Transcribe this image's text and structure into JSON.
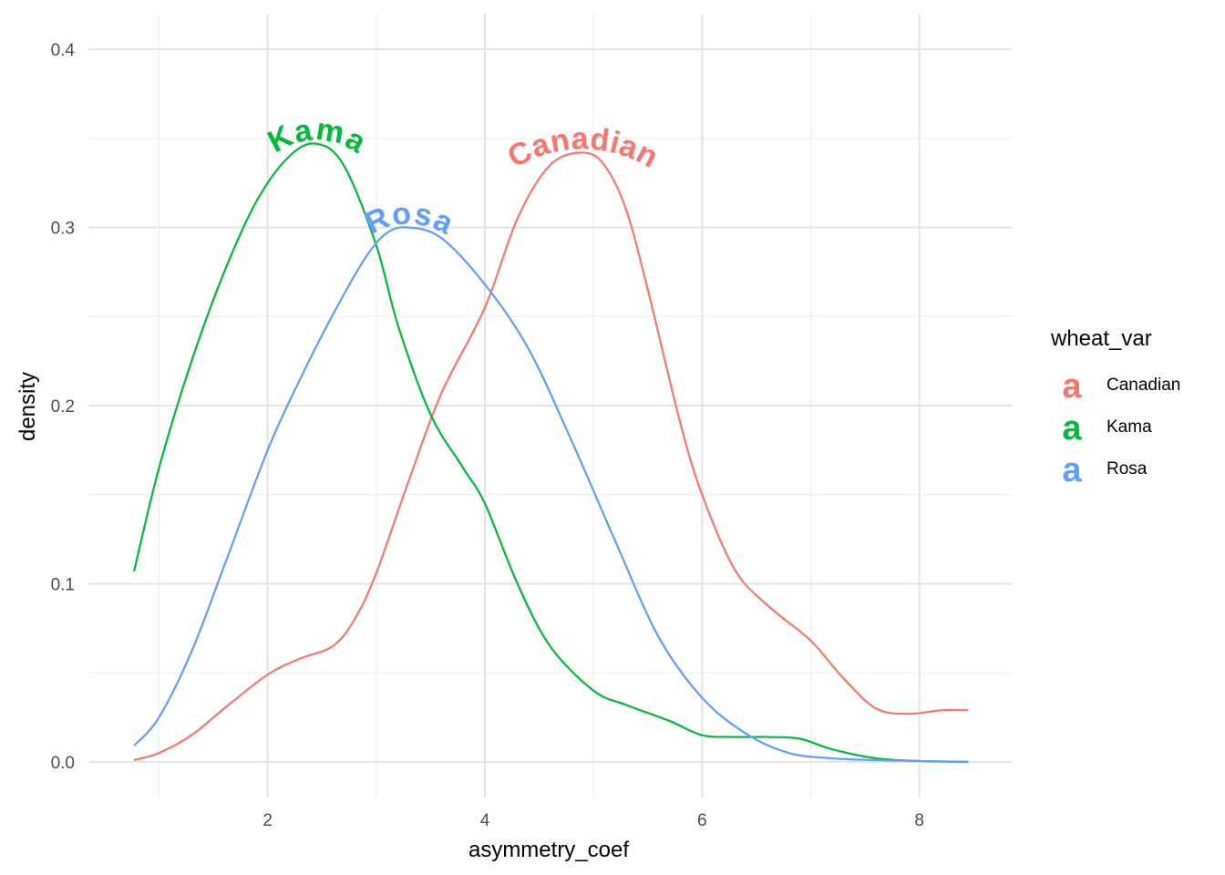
{
  "chart_data": {
    "type": "line",
    "subtype": "density",
    "title": "",
    "xlabel": "asymmetry_coef",
    "ylabel": "density",
    "xlim": [
      0.35,
      8.85
    ],
    "ylim": [
      -0.02,
      0.42
    ],
    "x_ticks": [
      2,
      4,
      6,
      8
    ],
    "x_tick_labels": [
      "2",
      "4",
      "6",
      "8"
    ],
    "y_ticks": [
      0.0,
      0.1,
      0.2,
      0.3,
      0.4
    ],
    "y_tick_labels": [
      "0.0",
      "0.1",
      "0.2",
      "0.3",
      "0.4"
    ],
    "grid": true,
    "legend": {
      "title": "wheat_var",
      "position": "right",
      "key_glyph": "a",
      "entries": [
        "Canadian",
        "Kama",
        "Rosa"
      ]
    },
    "series": [
      {
        "name": "Canadian",
        "color": "#F8766D",
        "curve_label": "Canadian",
        "label_at": [
          4.9,
          0.342
        ],
        "x": [
          0.77,
          1.0,
          1.3,
          1.6,
          2.0,
          2.3,
          2.6,
          2.8,
          3.0,
          3.3,
          3.6,
          4.0,
          4.3,
          4.6,
          4.9,
          5.1,
          5.3,
          5.5,
          5.8,
          6.0,
          6.3,
          6.6,
          7.0,
          7.3,
          7.6,
          7.9,
          8.2,
          8.45
        ],
        "y": [
          0.001,
          0.005,
          0.015,
          0.03,
          0.049,
          0.058,
          0.065,
          0.08,
          0.106,
          0.158,
          0.207,
          0.255,
          0.305,
          0.335,
          0.342,
          0.335,
          0.31,
          0.265,
          0.19,
          0.15,
          0.108,
          0.088,
          0.068,
          0.047,
          0.03,
          0.027,
          0.029,
          0.029
        ]
      },
      {
        "name": "Kama",
        "color": "#00BA38",
        "curve_label": "Kama",
        "label_at": [
          2.45,
          0.347
        ],
        "x": [
          0.77,
          1.0,
          1.3,
          1.6,
          1.9,
          2.2,
          2.45,
          2.7,
          3.0,
          3.2,
          3.5,
          3.8,
          4.0,
          4.3,
          4.6,
          5.0,
          5.3,
          5.7,
          6.0,
          6.3,
          6.6,
          6.9,
          7.2,
          7.6,
          8.0,
          8.45
        ],
        "y": [
          0.107,
          0.165,
          0.225,
          0.275,
          0.315,
          0.34,
          0.347,
          0.335,
          0.29,
          0.245,
          0.195,
          0.165,
          0.145,
          0.1,
          0.065,
          0.04,
          0.032,
          0.023,
          0.015,
          0.014,
          0.014,
          0.013,
          0.007,
          0.002,
          0.0005,
          0.0
        ]
      },
      {
        "name": "Rosa",
        "color": "#619CFF",
        "curve_label": "Rosa",
        "label_at": [
          3.3,
          0.3
        ],
        "x": [
          0.77,
          1.0,
          1.3,
          1.6,
          2.0,
          2.3,
          2.6,
          2.9,
          3.1,
          3.3,
          3.6,
          4.0,
          4.4,
          4.8,
          5.2,
          5.6,
          6.0,
          6.4,
          6.8,
          7.2,
          7.6,
          8.0,
          8.45
        ],
        "y": [
          0.009,
          0.025,
          0.062,
          0.11,
          0.175,
          0.215,
          0.251,
          0.283,
          0.297,
          0.3,
          0.294,
          0.268,
          0.232,
          0.18,
          0.124,
          0.07,
          0.036,
          0.016,
          0.005,
          0.002,
          0.001,
          0.0005,
          0.0
        ]
      }
    ]
  }
}
